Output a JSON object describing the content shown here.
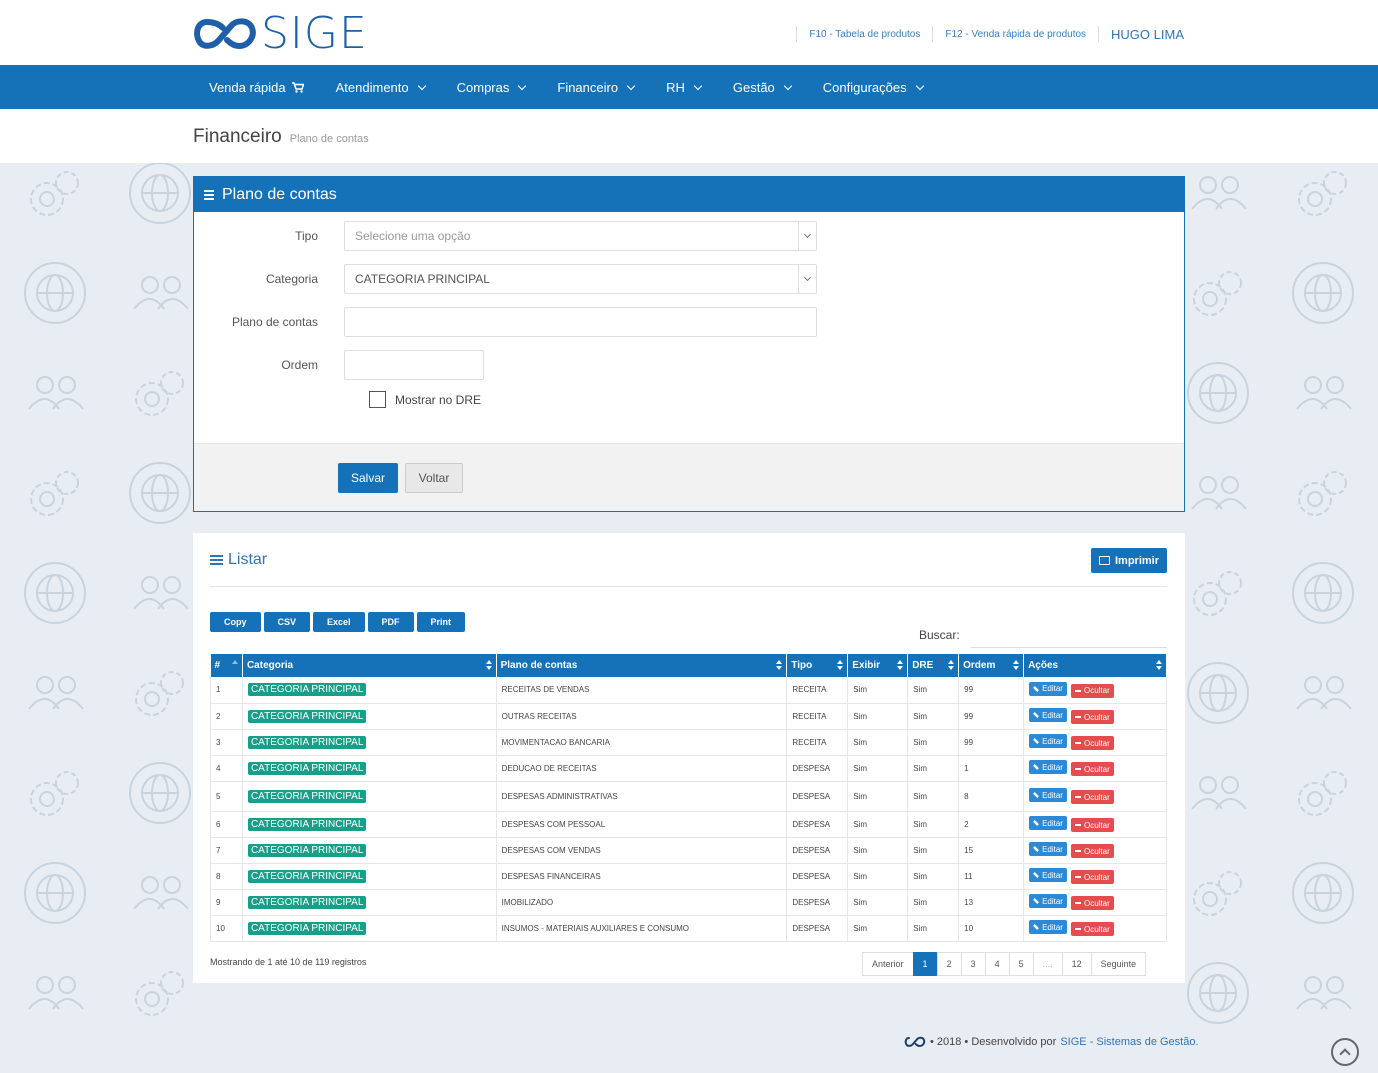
{
  "brand": {
    "logo_text": "SIGE"
  },
  "toplinks": {
    "f10": "F10 - Tabela de produtos",
    "f12": "F12 - Venda rápida de produtos",
    "user": "HUGO LIMA"
  },
  "nav": {
    "items": [
      "Venda rápida",
      "Atendimento",
      "Compras",
      "Financeiro",
      "RH",
      "Gestão",
      "Configurações"
    ]
  },
  "page": {
    "title": "Financeiro",
    "subtitle": "Plano de contas"
  },
  "form": {
    "header": "Plano de contas",
    "tipo_label": "Tipo",
    "tipo_placeholder": "Selecione uma opção",
    "categoria_label": "Categoria",
    "categoria_value": "CATEGORIA PRINCIPAL",
    "plano_label": "Plano de contas",
    "plano_value": "",
    "ordem_label": "Ordem",
    "ordem_value": "",
    "dre_label": "Mostrar no DRE",
    "dre_checked": false,
    "save_label": "Salvar",
    "back_label": "Voltar"
  },
  "list": {
    "title": "Listar",
    "print_label": "Imprimir",
    "exports": [
      "Copy",
      "CSV",
      "Excel",
      "PDF",
      "Print"
    ],
    "search_label": "Buscar:",
    "columns": [
      "#",
      "Categoria",
      "Plano de contas",
      "Tipo",
      "Exibir",
      "DRE",
      "Ordem",
      "Ações"
    ],
    "edit_label": "Editar",
    "hide_label": "Ocultar",
    "rows": [
      {
        "n": "1",
        "categoria": "CATEGORIA PRINCIPAL",
        "plano": "RECEITAS DE VENDAS",
        "tipo": "RECEITA",
        "exibir": "Sim",
        "dre": "Sim",
        "ordem": "99"
      },
      {
        "n": "2",
        "categoria": "CATEGORIA PRINCIPAL",
        "plano": "OUTRAS RECEITAS",
        "tipo": "RECEITA",
        "exibir": "Sim",
        "dre": "Sim",
        "ordem": "99"
      },
      {
        "n": "3",
        "categoria": "CATEGORIA PRINCIPAL",
        "plano": "MOVIMENTACAO BANCARIA",
        "tipo": "RECEITA",
        "exibir": "Sim",
        "dre": "Sim",
        "ordem": "99"
      },
      {
        "n": "4",
        "categoria": "CATEGORIA PRINCIPAL",
        "plano": "DEDUCAO DE RECEITAS",
        "tipo": "DESPESA",
        "exibir": "Sim",
        "dre": "Sim",
        "ordem": "1"
      },
      {
        "n": "5",
        "categoria": "CATEGORIA PRINCIPAL",
        "plano": "DESPESAS ADMINISTRATIVAS",
        "tipo": "DESPESA",
        "exibir": "Sim",
        "dre": "Sim",
        "ordem": "8"
      },
      {
        "n": "6",
        "categoria": "CATEGORIA PRINCIPAL",
        "plano": "DESPESAS COM PESSOAL",
        "tipo": "DESPESA",
        "exibir": "Sim",
        "dre": "Sim",
        "ordem": "2"
      },
      {
        "n": "7",
        "categoria": "CATEGORIA PRINCIPAL",
        "plano": "DESPESAS COM VENDAS",
        "tipo": "DESPESA",
        "exibir": "Sim",
        "dre": "Sim",
        "ordem": "15"
      },
      {
        "n": "8",
        "categoria": "CATEGORIA PRINCIPAL",
        "plano": "DESPESAS FINANCEIRAS",
        "tipo": "DESPESA",
        "exibir": "Sim",
        "dre": "Sim",
        "ordem": "11"
      },
      {
        "n": "9",
        "categoria": "CATEGORIA PRINCIPAL",
        "plano": "IMOBILIZADO",
        "tipo": "DESPESA",
        "exibir": "Sim",
        "dre": "Sim",
        "ordem": "13"
      },
      {
        "n": "10",
        "categoria": "CATEGORIA PRINCIPAL",
        "plano": "INSUMOS - MATERIAIS AUXILIARES E CONSUMO",
        "tipo": "DESPESA",
        "exibir": "Sim",
        "dre": "Sim",
        "ordem": "10"
      }
    ],
    "showing": "Mostrando de 1 até 10 de 119 registros",
    "pagination": {
      "prev": "Anterior",
      "pages": [
        "1",
        "2",
        "3",
        "4",
        "5"
      ],
      "ellipsis": "....",
      "last": "12",
      "next": "Seguinte",
      "active": "1"
    }
  },
  "footer": {
    "text": "• 2018 • Desenvolvido por",
    "link": "SIGE - Sistemas de Gestão."
  },
  "colors": {
    "primary": "#1572b9",
    "badge": "#17a087",
    "danger": "#e34d4d",
    "edit": "#2b8ad8"
  }
}
